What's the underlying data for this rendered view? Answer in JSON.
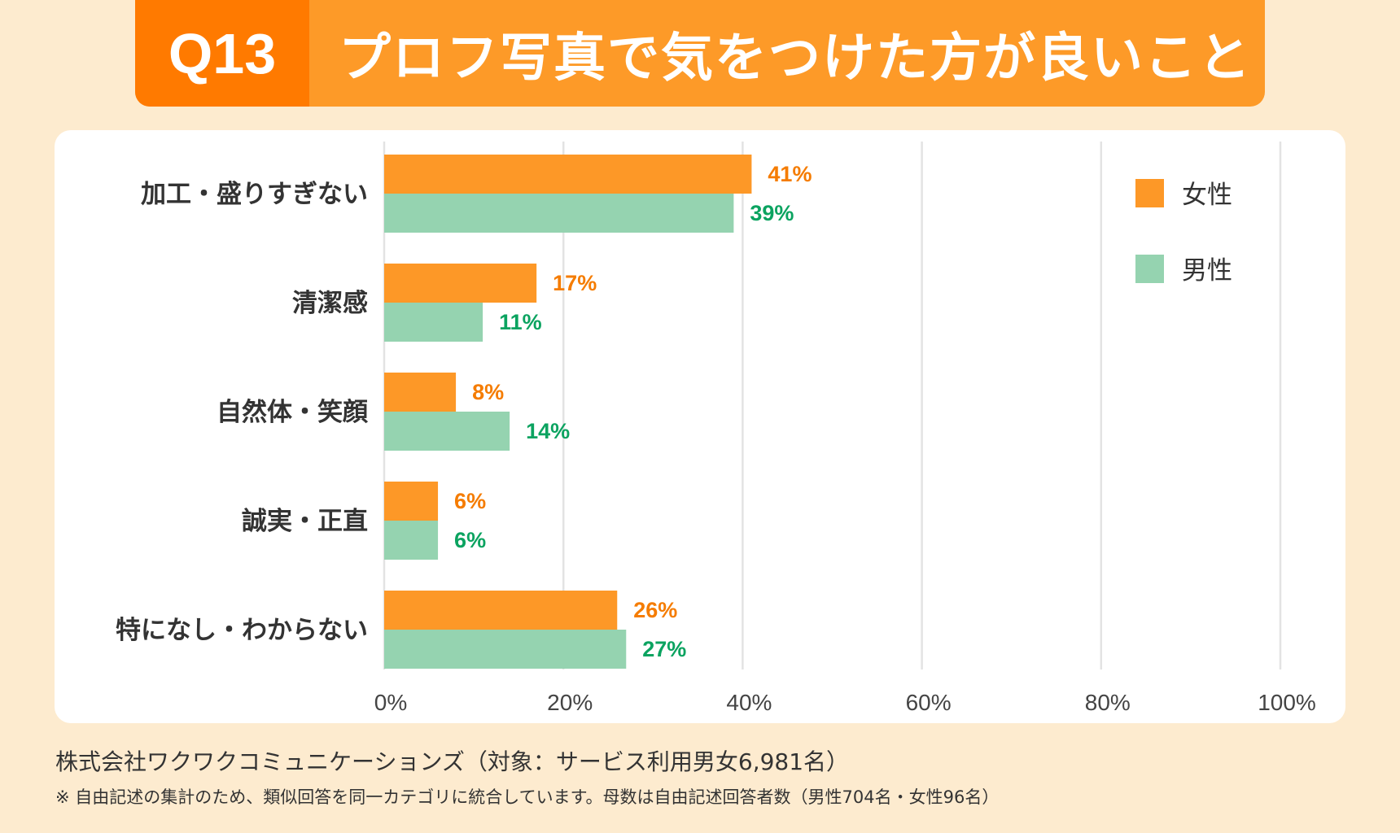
{
  "header": {
    "badge": "Q13",
    "title": "プロフ写真で気をつけた方が良いこと"
  },
  "colors": {
    "female": "#FD9827",
    "male": "#95D3B0",
    "female_label": "#F57C00",
    "male_label": "#0BA360"
  },
  "chart_data": {
    "type": "bar",
    "orientation": "horizontal",
    "categories": [
      "加工・盛りすぎない",
      "清潔感",
      "自然体・笑顔",
      "誠実・正直",
      "特になし・わからない"
    ],
    "series": [
      {
        "name": "女性",
        "values": [
          41,
          17,
          8,
          6,
          26
        ],
        "labels": [
          "41%",
          "17%",
          "8%",
          "6%",
          "26%"
        ]
      },
      {
        "name": "男性",
        "values": [
          39,
          11,
          14,
          6,
          27
        ],
        "labels": [
          "39%",
          "11%",
          "14%",
          "6%",
          "27%"
        ]
      }
    ],
    "xlim": [
      0,
      100
    ],
    "xticks": [
      "0%",
      "20%",
      "40%",
      "60%",
      "80%",
      "100%"
    ],
    "grid": true,
    "legend": "top-right"
  },
  "footer": {
    "source": "株式会社ワクワクコミュニケーションズ（対象：サービス利用男女6,981名）",
    "note": "※ 自由記述の集計のため、類似回答を同一カテゴリに統合しています。母数は自由記述回答者数（男性704名・女性96名）"
  }
}
